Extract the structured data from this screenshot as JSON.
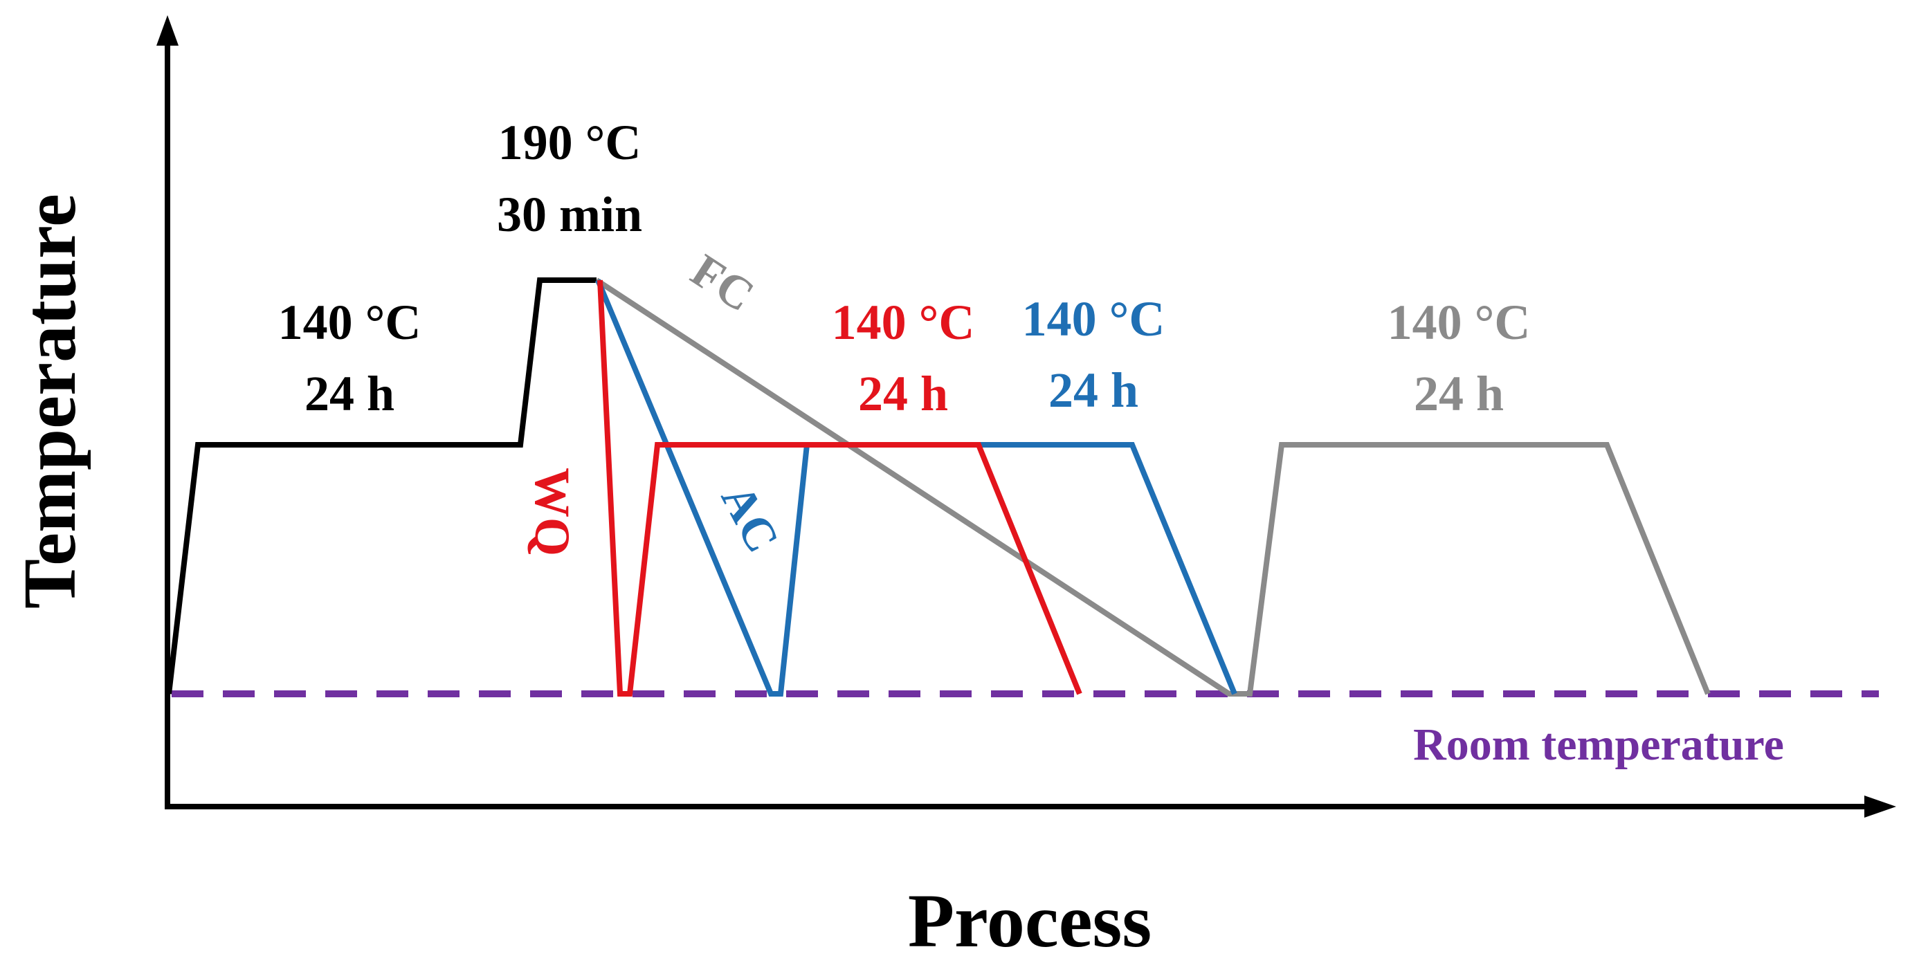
{
  "axes": {
    "y_label": "Temperature",
    "x_label": "Process"
  },
  "colors": {
    "black": "#000000",
    "wq": "#e3141c",
    "ac": "#1f6fb4",
    "fc": "#8a8a8a",
    "room": "#7030a0"
  },
  "annotations": {
    "initial_temp": "140 °C",
    "initial_time": "24 h",
    "solution_temp": "190 °C",
    "solution_time": "30 min",
    "fc_label": "FC",
    "wq_label": "WQ",
    "ac_label": "AC",
    "wq_age_temp": "140 °C",
    "wq_age_time": "24 h",
    "ac_age_temp": "140 °C",
    "ac_age_time": "24 h",
    "fc_age_temp": "140 °C",
    "fc_age_time": "24 h",
    "room_label": "Room temperature"
  }
}
